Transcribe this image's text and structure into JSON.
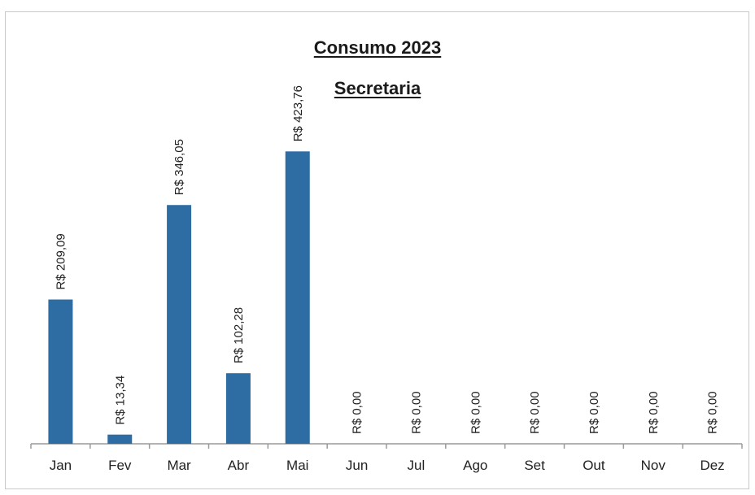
{
  "chart_data": {
    "type": "bar",
    "title": "Consumo 2023",
    "subtitle": "Secretaria",
    "categories": [
      "Jan",
      "Fev",
      "Mar",
      "Abr",
      "Mai",
      "Jun",
      "Jul",
      "Ago",
      "Set",
      "Out",
      "Nov",
      "Dez"
    ],
    "values": [
      209.09,
      13.34,
      346.05,
      102.28,
      423.76,
      0,
      0,
      0,
      0,
      0,
      0,
      0
    ],
    "data_labels": [
      "R$ 209,09",
      "R$ 13,34",
      "R$ 346,05",
      "R$ 102,28",
      "R$ 423,76",
      "R$ 0,00",
      "R$ 0,00",
      "R$ 0,00",
      "R$ 0,00",
      "R$ 0,00",
      "R$ 0,00",
      "R$ 0,00"
    ],
    "xlabel": "",
    "ylabel": "",
    "ylim": [
      0,
      450
    ],
    "grid": false,
    "legend": "none",
    "bar_color": "#2e6da4"
  }
}
